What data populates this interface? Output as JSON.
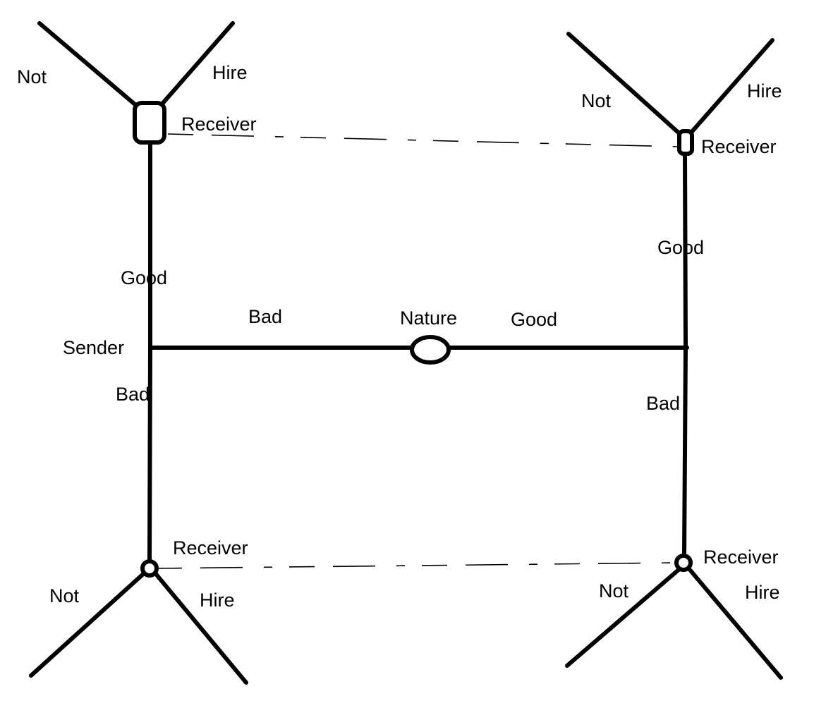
{
  "diagram": {
    "nature_label": "Nature",
    "sender_label": "Sender",
    "branch_bad_label": "Bad",
    "branch_good_label": "Good",
    "sender_bad": {
      "good_label": "Good",
      "bad_label": "Bad",
      "receiver_top": {
        "label": "Receiver",
        "not_label": "Not",
        "hire_label": "Hire"
      },
      "receiver_bottom": {
        "label": "Receiver",
        "not_label": "Not",
        "hire_label": "Hire"
      }
    },
    "sender_good": {
      "good_label": "Good",
      "bad_label": "Bad",
      "receiver_top": {
        "label": "Receiver",
        "not_label": "Not",
        "hire_label": "Hire"
      },
      "receiver_bottom": {
        "label": "Receiver",
        "not_label": "Not",
        "hire_label": "Hire"
      }
    }
  }
}
